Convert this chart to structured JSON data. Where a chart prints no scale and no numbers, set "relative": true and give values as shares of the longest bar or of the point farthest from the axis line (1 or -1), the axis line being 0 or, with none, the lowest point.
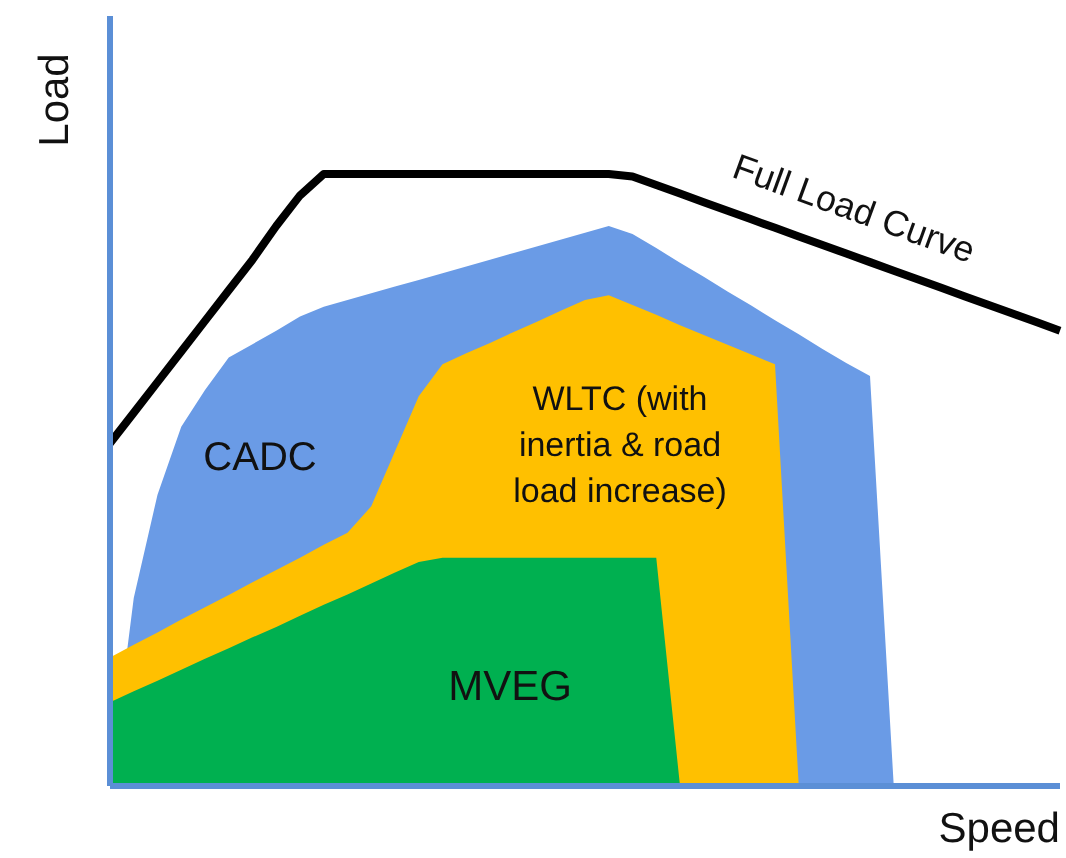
{
  "chart_data": {
    "type": "area",
    "relative": true,
    "xlabel": "Speed",
    "ylabel": "Load",
    "legend": false,
    "categories": [
      null,
      null,
      null,
      null,
      null,
      null,
      null,
      null,
      null,
      null,
      null,
      null,
      null,
      null,
      null,
      null,
      null,
      null,
      null,
      null,
      null,
      null,
      null,
      null,
      null,
      null,
      null,
      null,
      null,
      null,
      null,
      null,
      null,
      null,
      null,
      null,
      null,
      null,
      null,
      null,
      null
    ],
    "series": [
      {
        "name": "CADC",
        "color": "#6a9be6",
        "values": [
          0,
          0.307,
          0.476,
          0.587,
          0.647,
          0.7,
          0.722,
          0.744,
          0.767,
          0.783,
          0.794,
          0.805,
          0.816,
          0.827,
          0.838,
          0.849,
          0.86,
          0.871,
          0.882,
          0.893,
          0.904,
          0.915,
          0.902,
          0.879,
          0.855,
          0.832,
          0.808,
          0.785,
          0.761,
          0.738,
          0.714,
          0.691,
          0.67,
          0,
          null,
          null,
          null,
          null,
          null,
          null,
          null
        ]
      },
      {
        "name": "WLTC (with inertia & road load increase)",
        "color": "#ffc000",
        "values": [
          0.21,
          0.231,
          0.251,
          0.272,
          0.292,
          0.312,
          0.333,
          0.353,
          0.373,
          0.394,
          0.414,
          0.457,
          0.547,
          0.637,
          0.689,
          0.707,
          0.724,
          0.742,
          0.759,
          0.777,
          0.794,
          0.802,
          0.786,
          0.77,
          0.753,
          0.737,
          0.721,
          0.705,
          0.689,
          0,
          null,
          null,
          null,
          null,
          null,
          null,
          null,
          null,
          null,
          null,
          null
        ]
      },
      {
        "name": "MVEG",
        "color": "#00b050",
        "values": [
          0.137,
          0.155,
          0.172,
          0.19,
          0.208,
          0.225,
          0.243,
          0.26,
          0.278,
          0.296,
          0.313,
          0.331,
          0.349,
          0.366,
          0.373,
          0.373,
          0.373,
          0.373,
          0.373,
          0.373,
          0.373,
          0.373,
          0.373,
          0.373,
          0,
          null,
          null,
          null,
          null,
          null,
          null,
          null,
          null,
          null,
          null,
          null,
          null,
          null,
          null,
          null,
          null
        ]
      },
      {
        "name": "Full Load Curve",
        "type": "line",
        "color": "#000000",
        "values": [
          0.56,
          0.61,
          0.66,
          0.71,
          0.76,
          0.81,
          0.86,
          0.915,
          0.965,
          1,
          1,
          1,
          1,
          1,
          1,
          1,
          1,
          1,
          1,
          1,
          1,
          1,
          0.996,
          0.982,
          0.968,
          0.954,
          0.94,
          0.926,
          0.912,
          0.898,
          0.884,
          0.87,
          0.856,
          0.842,
          0.828,
          0.814,
          0.8,
          0.786,
          0.772,
          0.758,
          0.744
        ]
      }
    ]
  }
}
